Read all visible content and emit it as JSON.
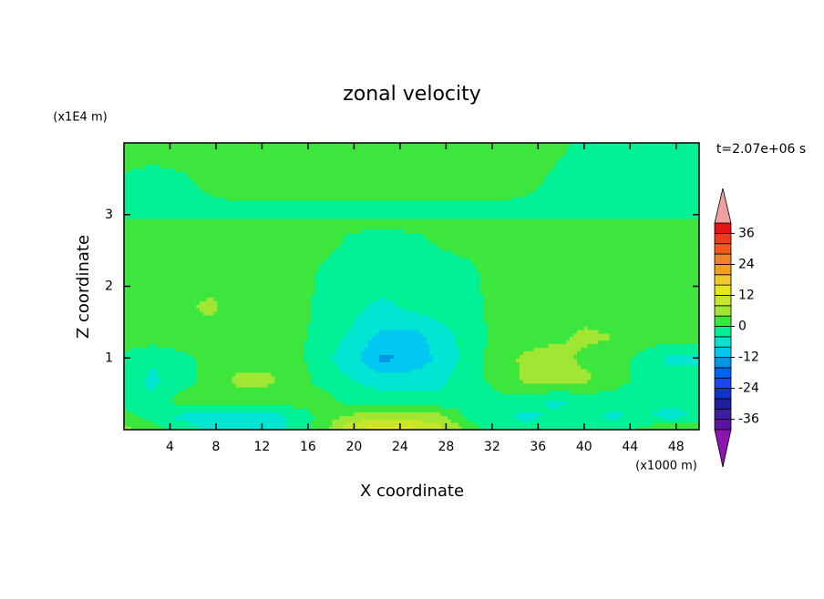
{
  "chart_data": {
    "type": "contour",
    "title": "zonal velocity",
    "x_label": "X coordinate",
    "y_label": "Z coordinate",
    "x_unit": "(x1000 m)",
    "y_unit": "(x1E4 m)",
    "annotation": "t=2.07e+06 s",
    "xlim": [
      0,
      50
    ],
    "ylim": [
      0,
      4
    ],
    "xticks": [
      4,
      8,
      12,
      16,
      20,
      24,
      28,
      32,
      36,
      40,
      44,
      48
    ],
    "yticks": [
      1,
      2,
      3
    ],
    "x": [
      0,
      2.5,
      5,
      7.5,
      10,
      12.5,
      15,
      17.5,
      20,
      22.5,
      25,
      27.5,
      30,
      32.5,
      35,
      37.5,
      40,
      42.5,
      45,
      47.5,
      50
    ],
    "y": [
      0,
      0.2,
      0.4,
      0.7,
      1.0,
      1.3,
      1.7,
      2.2,
      2.7,
      2.9,
      3.0,
      3.4,
      4
    ],
    "z": [
      [
        5,
        2,
        -2,
        -5,
        -5,
        -6,
        -3,
        3,
        12,
        14,
        13,
        10,
        2,
        -2,
        -3,
        -2,
        -2,
        -2,
        1,
        5,
        5
      ],
      [
        2,
        -2,
        -5,
        -6,
        -5,
        -6,
        -3,
        2,
        5,
        6,
        6,
        5,
        -1,
        -3,
        -5,
        -3,
        -2,
        -5,
        -3,
        -6,
        -3
      ],
      [
        -2,
        -3,
        2,
        2,
        2,
        1,
        2,
        2,
        -2,
        -2,
        -2,
        -3,
        -2,
        -1,
        -2,
        -5,
        -3,
        -2,
        -3,
        -2,
        -3
      ],
      [
        -2,
        -5,
        -2,
        2,
        5,
        5,
        2,
        -2,
        -4,
        -6,
        -6,
        -5,
        -1,
        1,
        5,
        6,
        5,
        2,
        -1,
        -2,
        -2
      ],
      [
        -1,
        -3,
        -1,
        1,
        2,
        2,
        1,
        -3,
        -7,
        -13,
        -11,
        -7,
        -2,
        2,
        5,
        6,
        3,
        2,
        -1,
        -5,
        -5
      ],
      [
        2,
        2,
        2,
        2,
        2,
        2,
        1,
        -2,
        -5,
        -9,
        -10,
        -6,
        -2,
        1,
        2,
        3,
        5,
        4,
        2,
        2,
        2
      ],
      [
        2,
        2,
        3,
        5,
        2,
        2,
        2,
        -2,
        -3,
        -5,
        -3,
        -2,
        -2,
        2,
        2,
        2,
        2,
        2,
        2,
        2,
        2
      ],
      [
        2,
        2,
        2,
        2,
        2,
        2,
        2,
        -1,
        -2,
        -2,
        -2,
        -2,
        -1,
        2,
        2,
        2,
        2,
        2,
        2,
        2,
        2
      ],
      [
        2,
        2,
        2,
        2,
        2,
        2,
        2,
        2,
        -1,
        -2,
        -1,
        1,
        2,
        2,
        2,
        2,
        2,
        2,
        2,
        2,
        2
      ],
      [
        2,
        2,
        2,
        2,
        2,
        2,
        2,
        2,
        2,
        2,
        2,
        2,
        2,
        2,
        2,
        2,
        2,
        2,
        2,
        2,
        2
      ],
      [
        -2,
        -2,
        -2,
        -2,
        -2,
        -2,
        -2,
        -2,
        -2,
        -2,
        -2,
        -2,
        -2,
        -2,
        -2,
        -2,
        -2,
        -2,
        -2,
        -2,
        -2
      ],
      [
        -1,
        -2,
        -1,
        1,
        2,
        2,
        2,
        2,
        2,
        2,
        2,
        2,
        2,
        2,
        1,
        -1,
        -2,
        -2,
        -2,
        -2,
        -2
      ],
      [
        2,
        2,
        2,
        2,
        2,
        2,
        2,
        2,
        2,
        2,
        2,
        2,
        2,
        2,
        2,
        1,
        -1,
        -2,
        -2,
        -2,
        -2
      ]
    ],
    "colorbar": {
      "levels": [
        -40,
        -36,
        -32,
        -28,
        -24,
        -20,
        -16,
        -12,
        -8,
        -4,
        0,
        4,
        8,
        12,
        16,
        20,
        24,
        28,
        32,
        36,
        40
      ],
      "colors": [
        "#5a14a0",
        "#3c1e9e",
        "#1e1ea0",
        "#1432c8",
        "#1e46f0",
        "#0064f0",
        "#0096e6",
        "#00c8f0",
        "#00e6d2",
        "#00f096",
        "#3ce63c",
        "#a0e632",
        "#c8e628",
        "#e6e61e",
        "#f0c828",
        "#f0a01e",
        "#f08228",
        "#f05a1e",
        "#f03c1e",
        "#e61414"
      ],
      "under_color": "#8c14b0",
      "over_color": "#f0a0a0",
      "ticks": [
        36,
        24,
        12,
        0,
        -12,
        -24,
        -36
      ]
    }
  }
}
